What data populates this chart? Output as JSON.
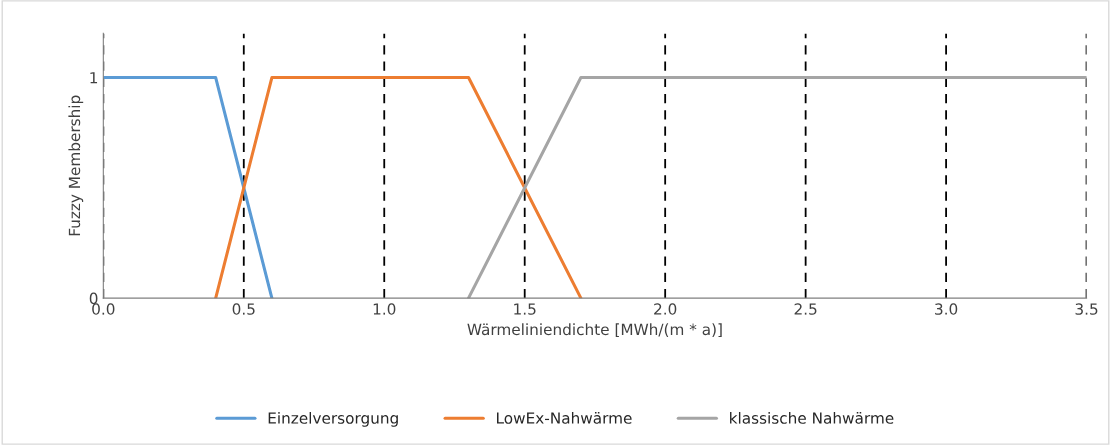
{
  "chart_data": {
    "type": "line",
    "xlabel": "Wärmeliniendichte [MWh/(m * a)]",
    "ylabel": "Fuzzy Membership",
    "series": [
      {
        "name": "Einzelversorgung",
        "color": "#5b9bd5",
        "x": [
          0,
          0.4,
          0.6
        ],
        "values": [
          1,
          1,
          0
        ]
      },
      {
        "name": "LowEx-Nahwärme",
        "color": "#ed7d31",
        "x": [
          0.4,
          0.6,
          1.3,
          1.7
        ],
        "values": [
          0,
          1,
          1,
          0
        ]
      },
      {
        "name": "klassische Nahwärme",
        "color": "#a5a5a5",
        "x": [
          1.3,
          1.7,
          3.5
        ],
        "values": [
          0,
          1,
          1
        ]
      }
    ],
    "xlim": [
      0,
      3.5
    ],
    "xticks": [
      {
        "value": 0,
        "label": "0.0"
      },
      {
        "value": 0.5,
        "label": "0.5"
      },
      {
        "value": 1,
        "label": "1.0"
      },
      {
        "value": 1.5,
        "label": "1.5"
      },
      {
        "value": 2,
        "label": "2.0"
      },
      {
        "value": 2.5,
        "label": "2.5"
      },
      {
        "value": 3,
        "label": "3.0"
      },
      {
        "value": 3.5,
        "label": "3.5"
      }
    ],
    "ylim": [
      0,
      1.2
    ],
    "yticks": [
      0,
      1
    ],
    "grid": "x",
    "legend": "bottom",
    "marker": "none",
    "line_style": "solid"
  }
}
